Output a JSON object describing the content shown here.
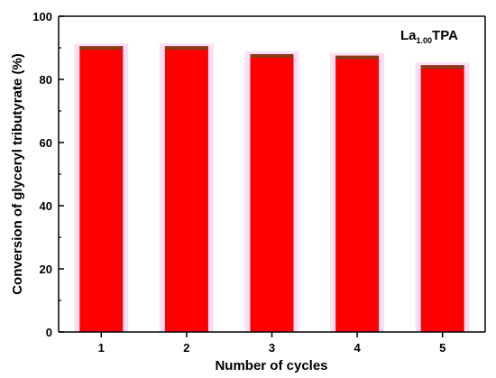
{
  "chart_data": {
    "type": "bar",
    "title": "",
    "annotation": {
      "main": "La",
      "sub": "1.00",
      "suffix": "TPA"
    },
    "xlabel": "Number of cycles",
    "ylabel": "Conversion of glyceryl tributyrate (%)",
    "categories": [
      "1",
      "2",
      "3",
      "4",
      "5"
    ],
    "values": [
      90.5,
      90.5,
      88,
      87.5,
      84.5
    ],
    "ylim": [
      0,
      100
    ],
    "yticks": [
      0,
      20,
      40,
      60,
      80,
      100
    ],
    "grid": false,
    "legend": "none",
    "colors": {
      "bar": "#ff0000",
      "bar_top": "#8b3a1a",
      "halo": "#f7c8f0",
      "axis": "#000000"
    }
  }
}
